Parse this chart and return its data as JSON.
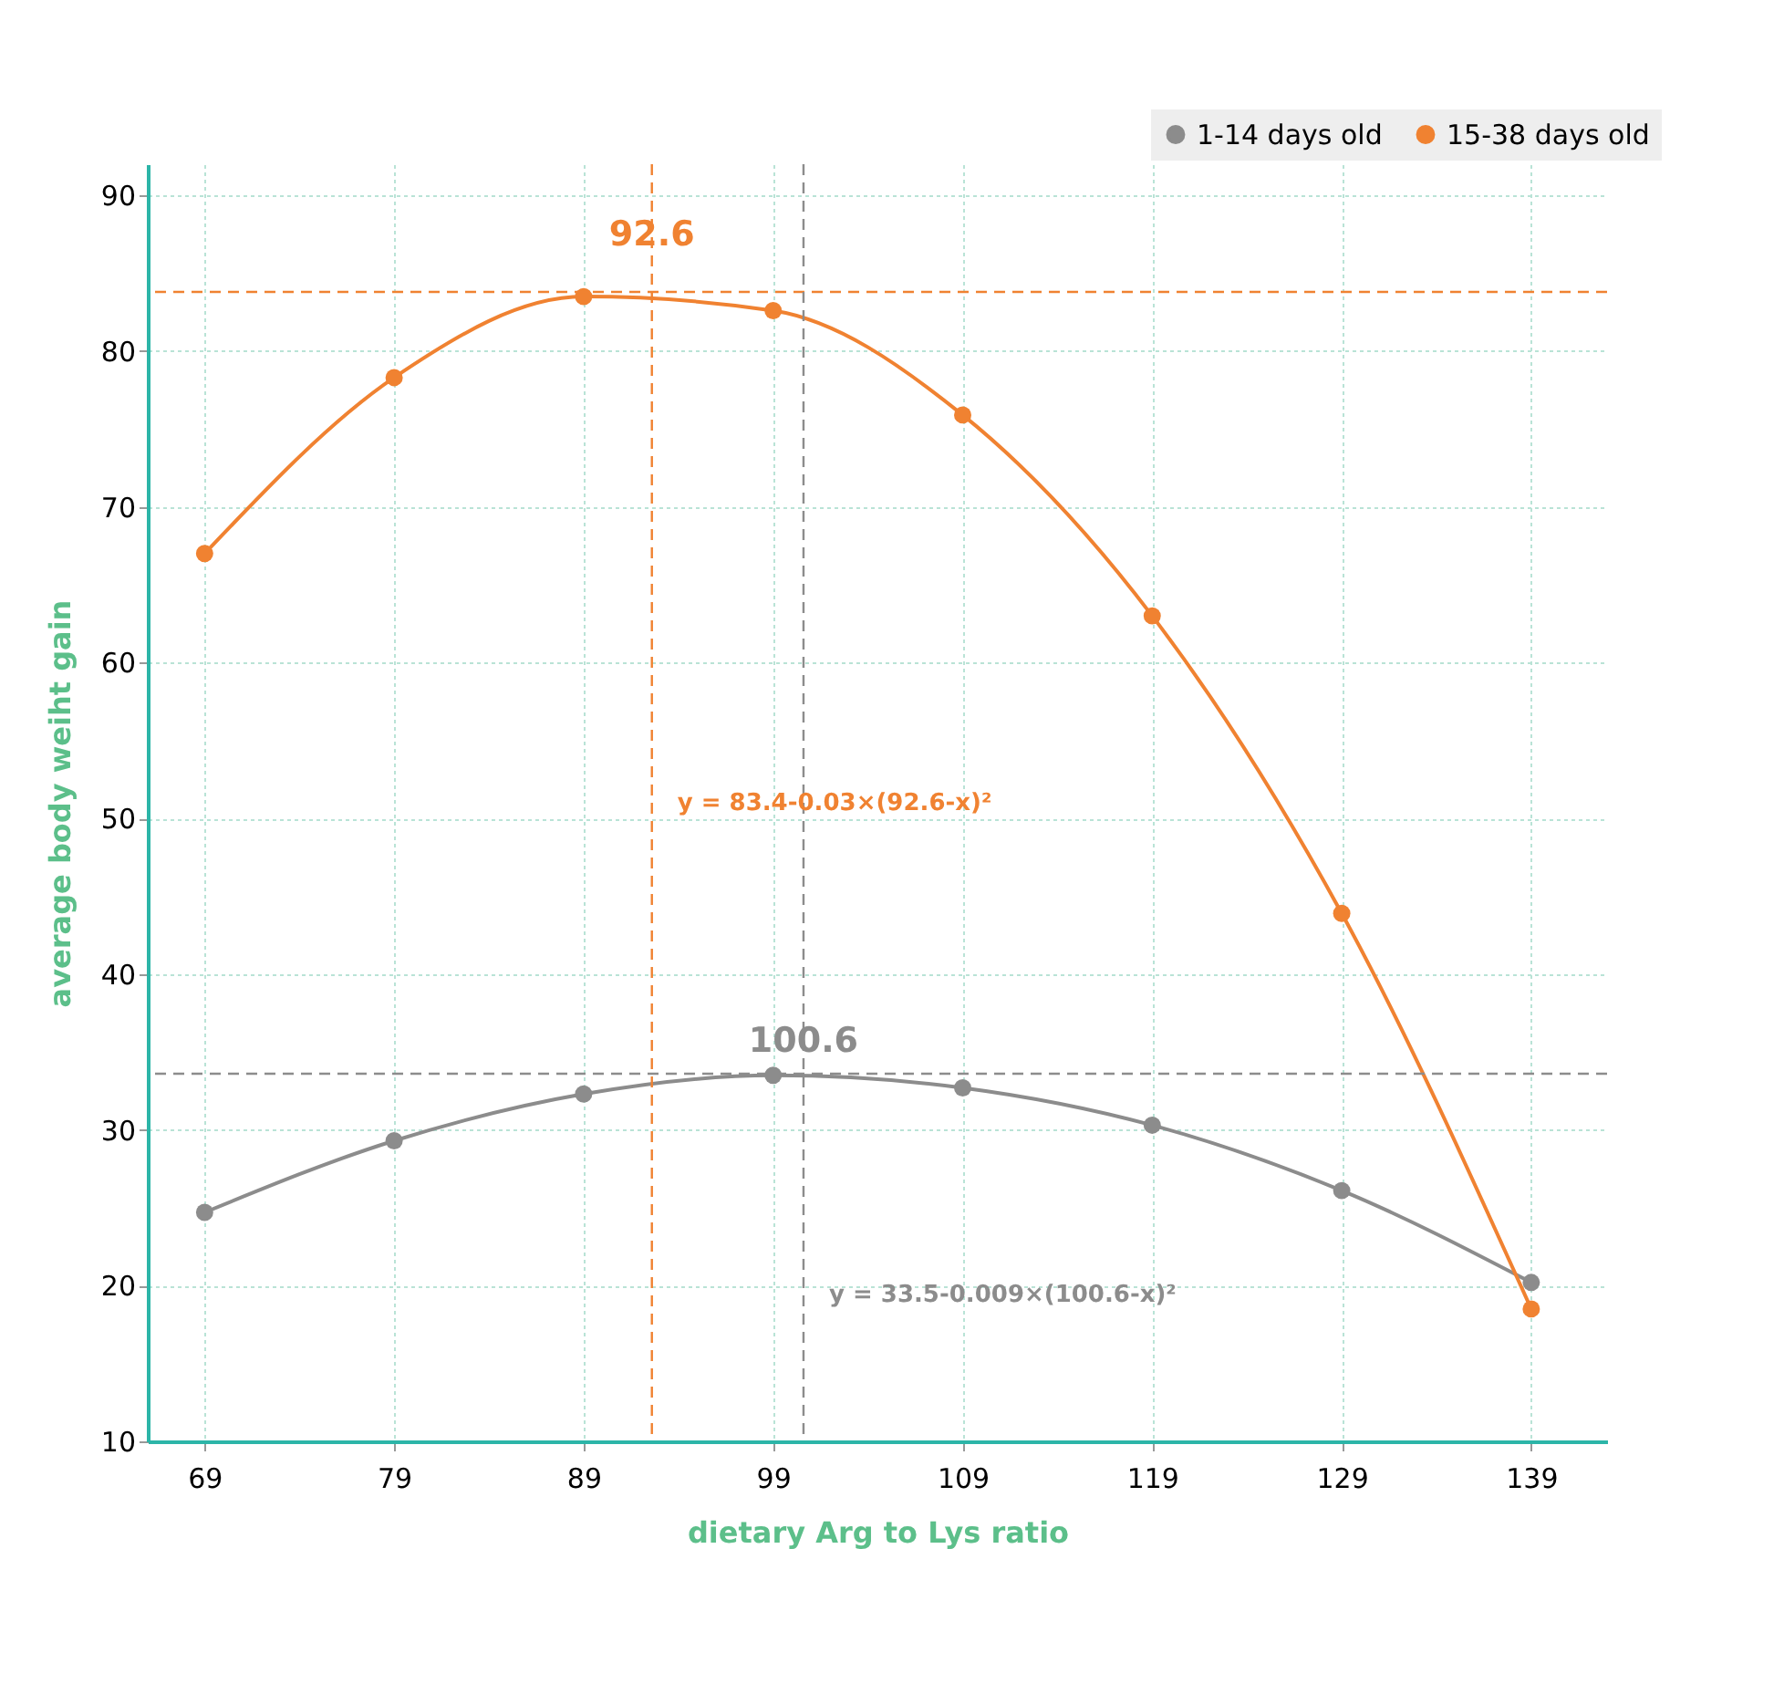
{
  "chart_data": {
    "type": "line",
    "xlabel": "dietary Arg to Lys ratio",
    "ylabel": "average body weiht gain",
    "x": [
      69,
      79,
      89,
      99,
      109,
      119,
      129,
      139
    ],
    "series": [
      {
        "name": "1-14 days old",
        "color": "#8c8c8c",
        "values": [
          24.7,
          29.3,
          32.3,
          33.5,
          32.7,
          30.3,
          26.1,
          20.2
        ]
      },
      {
        "name": "15-38 days old",
        "color": "#f08231",
        "values": [
          67.0,
          78.3,
          83.5,
          82.6,
          75.9,
          63.0,
          43.9,
          18.5
        ]
      }
    ],
    "xlim": [
      66,
      143
    ],
    "xticks": [
      69,
      79,
      89,
      99,
      109,
      119,
      129,
      139
    ],
    "ylim": [
      10,
      92
    ],
    "yticks": [
      10,
      20,
      30,
      40,
      50,
      60,
      70,
      80,
      90
    ],
    "ref_lines": [
      {
        "axis": "x",
        "value": 92.6,
        "color": "#f08231",
        "line_style": "dashed"
      },
      {
        "axis": "y",
        "value": 83.8,
        "color": "#f08231",
        "line_style": "dashed"
      },
      {
        "axis": "x",
        "value": 100.6,
        "color": "#8c8c8c",
        "line_style": "dashed"
      },
      {
        "axis": "y",
        "value": 33.6,
        "color": "#8c8c8c",
        "line_style": "dashed"
      }
    ],
    "annotations": [
      {
        "text": "92.6",
        "x": 92.6,
        "y": 87.5
      },
      {
        "text": "100.6",
        "x": 100.6,
        "y": 35.7
      },
      "y = 83.4-0.03×(92.6-x)²",
      "y = 33.5-0.009×(100.6-x)²"
    ],
    "grid": true,
    "legend": "top right",
    "marker": "circle",
    "line_style": "solid"
  }
}
